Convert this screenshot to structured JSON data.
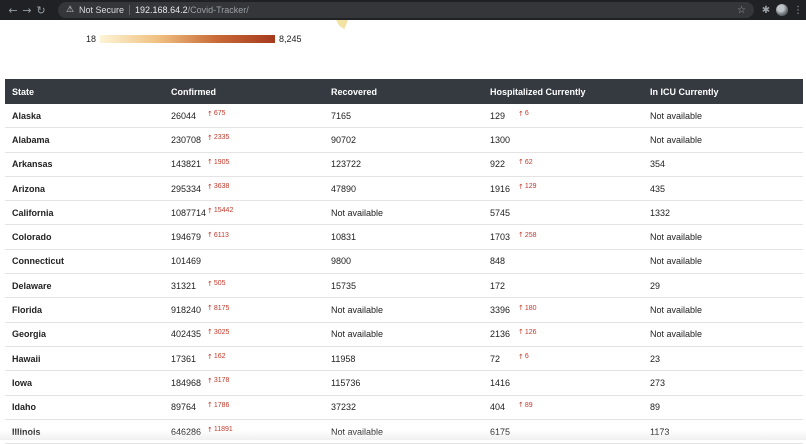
{
  "browser": {
    "nav": {
      "back_icon": "←",
      "forward_icon": "→",
      "reload_icon": "↻"
    },
    "security_label": "Not Secure",
    "url_host": "192.168.64.2",
    "url_path": "/Covid-Tracker/",
    "icons": {
      "warning": "⚠",
      "star": "☆",
      "extensions": "✱",
      "menu": "⋮"
    }
  },
  "legend": {
    "min": "18",
    "max": "8,245",
    "colors": [
      "#fdf4d6",
      "#a63a1e"
    ]
  },
  "table": {
    "headers": {
      "state": "State",
      "confirmed": "Confirmed",
      "recovered": "Recovered",
      "hospitalized": "Hospitalized Currently",
      "icu": "In ICU Currently"
    },
    "delta_arrow": "↑",
    "rows": [
      {
        "state": "Alaska",
        "confirmed": "26044",
        "confirmed_delta": "675",
        "recovered": "7165",
        "hospitalized": "129",
        "hospitalized_delta": "6",
        "icu": "Not available"
      },
      {
        "state": "Alabama",
        "confirmed": "230708",
        "confirmed_delta": "2335",
        "recovered": "90702",
        "hospitalized": "1300",
        "hospitalized_delta": "",
        "icu": "Not available"
      },
      {
        "state": "Arkansas",
        "confirmed": "143821",
        "confirmed_delta": "1905",
        "recovered": "123722",
        "hospitalized": "922",
        "hospitalized_delta": "62",
        "icu": "354"
      },
      {
        "state": "Arizona",
        "confirmed": "295334",
        "confirmed_delta": "3638",
        "recovered": "47890",
        "hospitalized": "1916",
        "hospitalized_delta": "129",
        "icu": "435"
      },
      {
        "state": "California",
        "confirmed": "1087714",
        "confirmed_delta": "15442",
        "recovered": "Not available",
        "hospitalized": "5745",
        "hospitalized_delta": "",
        "icu": "1332"
      },
      {
        "state": "Colorado",
        "confirmed": "194679",
        "confirmed_delta": "6113",
        "recovered": "10831",
        "hospitalized": "1703",
        "hospitalized_delta": "258",
        "icu": "Not available"
      },
      {
        "state": "Connecticut",
        "confirmed": "101469",
        "confirmed_delta": "",
        "recovered": "9800",
        "hospitalized": "848",
        "hospitalized_delta": "",
        "icu": "Not available"
      },
      {
        "state": "Delaware",
        "confirmed": "31321",
        "confirmed_delta": "505",
        "recovered": "15735",
        "hospitalized": "172",
        "hospitalized_delta": "",
        "icu": "29"
      },
      {
        "state": "Florida",
        "confirmed": "918240",
        "confirmed_delta": "8175",
        "recovered": "Not available",
        "hospitalized": "3396",
        "hospitalized_delta": "180",
        "icu": "Not available"
      },
      {
        "state": "Georgia",
        "confirmed": "402435",
        "confirmed_delta": "3025",
        "recovered": "Not available",
        "hospitalized": "2136",
        "hospitalized_delta": "126",
        "icu": "Not available"
      },
      {
        "state": "Hawaii",
        "confirmed": "17361",
        "confirmed_delta": "162",
        "recovered": "11958",
        "hospitalized": "72",
        "hospitalized_delta": "6",
        "icu": "23"
      },
      {
        "state": "Iowa",
        "confirmed": "184968",
        "confirmed_delta": "3178",
        "recovered": "115736",
        "hospitalized": "1416",
        "hospitalized_delta": "",
        "icu": "273"
      },
      {
        "state": "Idaho",
        "confirmed": "89764",
        "confirmed_delta": "1786",
        "recovered": "37232",
        "hospitalized": "404",
        "hospitalized_delta": "89",
        "icu": "89"
      },
      {
        "state": "Illinois",
        "confirmed": "646286",
        "confirmed_delta": "11891",
        "recovered": "Not available",
        "hospitalized": "6175",
        "hospitalized_delta": "",
        "icu": "1173"
      }
    ]
  }
}
